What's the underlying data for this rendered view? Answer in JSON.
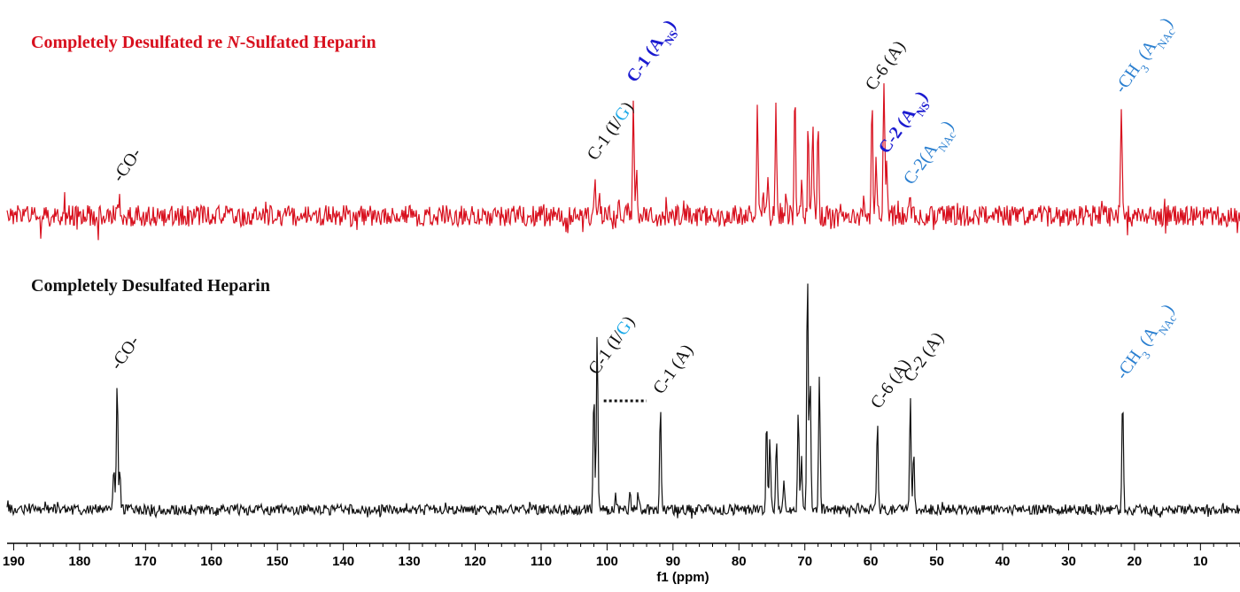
{
  "chart_data": {
    "type": "line",
    "xlabel": "f1 (ppm)",
    "xlim": [
      191,
      4
    ],
    "x_ticks": [
      190,
      180,
      170,
      160,
      150,
      140,
      130,
      120,
      110,
      100,
      90,
      80,
      70,
      60,
      50,
      40,
      30,
      20,
      10
    ],
    "grid": false,
    "colors": {
      "red": "#d8101e",
      "black": "#111111",
      "darkblue": "#1a1ad0",
      "lightblue": "#2a7fd0",
      "cyan": "#18a8e8"
    },
    "series": [
      {
        "title_parts": [
          {
            "text": "Completely Desulfated re ",
            "italic": false
          },
          {
            "text": "N",
            "italic": true
          },
          {
            "text": "-Sulfated Heparin",
            "italic": false
          }
        ],
        "color": "red",
        "peaks": [
          [
            174.0,
            0.14
          ],
          [
            101.8,
            0.3
          ],
          [
            101.2,
            0.18
          ],
          [
            98.2,
            0.12
          ],
          [
            96.0,
            0.88
          ],
          [
            95.5,
            0.3
          ],
          [
            77.2,
            0.78
          ],
          [
            76.3,
            0.25
          ],
          [
            75.6,
            0.22
          ],
          [
            74.4,
            0.82
          ],
          [
            72.8,
            0.2
          ],
          [
            71.5,
            0.98
          ],
          [
            70.5,
            0.3
          ],
          [
            69.5,
            0.7
          ],
          [
            68.8,
            0.66
          ],
          [
            68.0,
            0.62
          ],
          [
            61.0,
            0.12
          ],
          [
            59.8,
            0.82
          ],
          [
            59.2,
            0.45
          ],
          [
            58.0,
            1.0
          ],
          [
            57.6,
            0.35
          ],
          [
            54.0,
            0.12
          ],
          [
            22.0,
            0.8
          ]
        ],
        "labels": [
          {
            "x": 174.0,
            "parts": [
              {
                "t": "-CO-",
                "c": "black"
              }
            ]
          },
          {
            "x": 102.0,
            "parts": [
              {
                "t": "C-1 (I/",
                "c": "black"
              },
              {
                "t": "G",
                "c": "cyan"
              },
              {
                "t": ")",
                "c": "black"
              }
            ]
          },
          {
            "x": 96.0,
            "bold": true,
            "parts": [
              {
                "t": "C-1 (A",
                "c": "darkblue"
              },
              {
                "t": "NS",
                "c": "darkblue",
                "sub": true
              },
              {
                "t": ")",
                "c": "darkblue"
              }
            ]
          },
          {
            "x": 59.8,
            "parts": [
              {
                "t": "C-6 (A)",
                "c": "black"
              }
            ]
          },
          {
            "x": 57.8,
            "bold": true,
            "parts": [
              {
                "t": "C-2 (A",
                "c": "darkblue"
              },
              {
                "t": "NS",
                "c": "darkblue",
                "sub": true
              },
              {
                "t": ")",
                "c": "darkblue"
              }
            ]
          },
          {
            "x": 54.0,
            "parts": [
              {
                "t": "C-2(A",
                "c": "lightblue"
              },
              {
                "t": "NAc",
                "c": "lightblue",
                "sub": true
              },
              {
                "t": ")",
                "c": "lightblue"
              }
            ]
          },
          {
            "x": 22.0,
            "parts": [
              {
                "t": "-CH",
                "c": "lightblue"
              },
              {
                "t": "3",
                "c": "lightblue",
                "sub": true
              },
              {
                "t": " (A",
                "c": "lightblue"
              },
              {
                "t": "NAc",
                "c": "lightblue",
                "sub": true
              },
              {
                "t": ")",
                "c": "lightblue"
              }
            ]
          }
        ]
      },
      {
        "title_parts": [
          {
            "text": "Completely Desulfated Heparin",
            "italic": false
          }
        ],
        "color": "black",
        "peaks": [
          [
            174.3,
            0.52
          ],
          [
            174.8,
            0.18
          ],
          [
            173.9,
            0.18
          ],
          [
            102.0,
            0.5
          ],
          [
            101.5,
            0.72
          ],
          [
            98.7,
            0.06
          ],
          [
            96.5,
            0.08
          ],
          [
            95.3,
            0.07
          ],
          [
            91.9,
            0.42
          ],
          [
            75.8,
            0.36
          ],
          [
            75.3,
            0.3
          ],
          [
            74.3,
            0.33
          ],
          [
            73.2,
            0.12
          ],
          [
            71.0,
            0.42
          ],
          [
            70.5,
            0.22
          ],
          [
            69.6,
            1.0
          ],
          [
            69.2,
            0.55
          ],
          [
            67.8,
            0.57
          ],
          [
            62.0,
            0.04
          ],
          [
            59.0,
            0.36
          ],
          [
            54.0,
            0.47
          ],
          [
            53.5,
            0.24
          ],
          [
            21.8,
            0.48
          ]
        ],
        "labels": [
          {
            "x": 174.3,
            "parts": [
              {
                "t": "-CO-",
                "c": "black"
              }
            ]
          },
          {
            "x": 101.8,
            "parts": [
              {
                "t": "C-1 (I/",
                "c": "black"
              },
              {
                "t": "G",
                "c": "cyan"
              },
              {
                "t": ")",
                "c": "black"
              }
            ]
          },
          {
            "x": 92.0,
            "parts": [
              {
                "t": "C-1 (A)",
                "c": "black"
              }
            ]
          },
          {
            "x": 59.0,
            "parts": [
              {
                "t": "C-6 (A)",
                "c": "black"
              }
            ]
          },
          {
            "x": 54.0,
            "parts": [
              {
                "t": "C-2 (A)",
                "c": "black"
              }
            ]
          },
          {
            "x": 21.8,
            "parts": [
              {
                "t": "-CH",
                "c": "lightblue"
              },
              {
                "t": "3",
                "c": "lightblue",
                "sub": true
              },
              {
                "t": " (A",
                "c": "lightblue"
              },
              {
                "t": "NAc",
                "c": "lightblue",
                "sub": true
              },
              {
                "t": ")",
                "c": "lightblue"
              }
            ]
          }
        ]
      }
    ]
  }
}
